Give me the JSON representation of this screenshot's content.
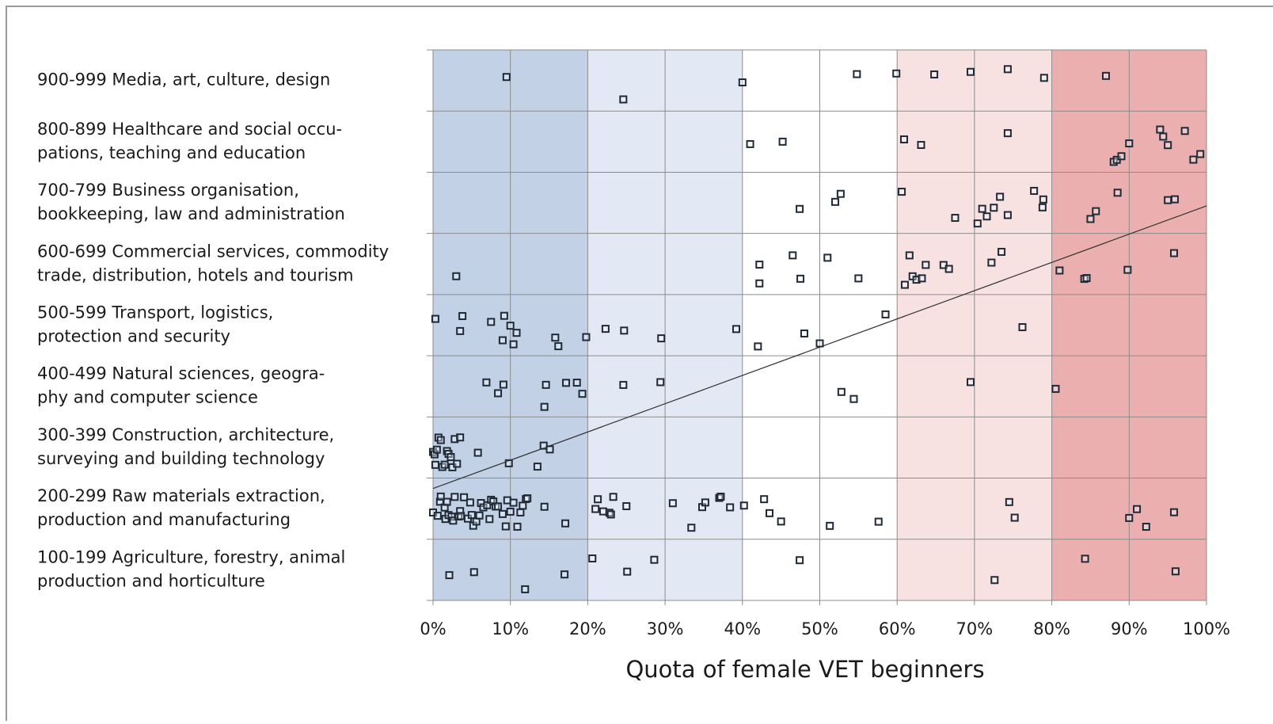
{
  "chart_data": {
    "type": "scatter",
    "xlabel": "Quota of female VET beginners",
    "categories": [
      [
        "900-999 Media, art, culture, design"
      ],
      [
        "800-899 Healthcare and social occu-",
        "pations, teaching and education"
      ],
      [
        "700-799 Business organisation,",
        "bookkeeping, law and administration"
      ],
      [
        "600-699 Commercial services, commodity",
        "trade, distribution, hotels and tourism"
      ],
      [
        "500-599 Transport, logistics,",
        "protection and security"
      ],
      [
        "400-499 Natural sciences, geogra-",
        "phy and computer science"
      ],
      [
        "300-399 Construction, architecture,",
        "surveying and building technology"
      ],
      [
        "200-299 Raw materials extraction,",
        "production and manufacturing"
      ],
      [
        "100-199 Agriculture, forestry, animal",
        "production and horticulture"
      ]
    ],
    "values": [
      [
        9.5,
        24.6,
        40,
        54.8,
        59.9,
        64.8,
        69.5,
        74.3,
        79,
        87
      ],
      [
        41,
        45.2,
        60.9,
        63.1,
        74.3,
        88,
        88.4,
        89,
        90,
        94,
        94.4,
        95,
        97.2,
        98.3,
        99.2
      ],
      [
        47.4,
        52,
        52.7,
        60.6,
        67.5,
        70.4,
        71,
        71.6,
        72.5,
        73.3,
        74.3,
        77.7,
        78.8,
        78.9,
        85,
        85.7,
        88.5,
        95,
        95.9
      ],
      [
        3,
        42.2,
        42.2,
        46.5,
        47.5,
        51,
        55,
        61,
        61.6,
        62,
        62.5,
        63.2,
        63.7,
        66,
        66.7,
        72.2,
        73.5,
        81,
        84.2,
        84.5,
        89.8,
        95.8
      ],
      [
        0.3,
        3.5,
        3.8,
        7.5,
        9,
        9.2,
        10,
        10.4,
        10.8,
        15.8,
        16.2,
        19.8,
        22.3,
        24.7,
        29.5,
        39.2,
        42,
        48,
        50,
        58.5,
        76.2
      ],
      [
        6.9,
        8.4,
        9.1,
        14.4,
        14.6,
        17.2,
        18.6,
        19.3,
        24.6,
        29.4,
        52.8,
        54.4,
        69.5,
        80.5
      ],
      [
        0,
        0.2,
        0.3,
        0.5,
        0.7,
        1,
        1.2,
        1.5,
        1.8,
        2,
        2.3,
        2.5,
        2.8,
        3.1,
        3.5,
        5.8,
        9.8,
        13.5,
        14.3,
        15.1
      ],
      [
        0,
        0.6,
        0.9,
        1,
        1.5,
        1.6,
        1.8,
        2,
        2.4,
        2.6,
        2.8,
        3.3,
        3.5,
        3.6,
        4,
        4.5,
        4.8,
        5,
        5.2,
        5.6,
        6,
        6.2,
        6.5,
        7,
        7.3,
        7.5,
        7.8,
        8.1,
        8.4,
        9,
        9.4,
        9.6,
        10,
        10.4,
        10.9,
        11.3,
        11.6,
        12,
        12.2,
        14.4,
        17.1,
        21,
        21.3,
        22,
        22.8,
        23,
        23.3,
        25,
        31,
        33.4,
        34.8,
        35.2,
        37,
        37.2,
        38.4,
        40.2,
        42.8,
        43.5,
        45,
        51.3,
        57.6,
        74.5,
        75.2,
        90,
        91,
        92.2,
        95.8
      ],
      [
        2.1,
        5.3,
        11.9,
        17,
        20.6,
        25.1,
        28.6,
        47.4,
        72.6,
        84.3,
        96
      ]
    ],
    "xlim": [
      0,
      100
    ],
    "xticks": [
      {
        "value": 0,
        "label": "0%"
      },
      {
        "value": 10,
        "label": "10%"
      },
      {
        "value": 20,
        "label": "20%"
      },
      {
        "value": 30,
        "label": "30%"
      },
      {
        "value": 40,
        "label": "40%"
      },
      {
        "value": 50,
        "label": "50%"
      },
      {
        "value": 60,
        "label": "60%"
      },
      {
        "value": 70,
        "label": "70%"
      },
      {
        "value": 80,
        "label": "80%"
      },
      {
        "value": 90,
        "label": "90%"
      },
      {
        "value": 100,
        "label": "100%"
      }
    ],
    "ylim": [
      0,
      9
    ],
    "grid": true,
    "bands": [
      {
        "from": 0,
        "to": 20,
        "color": "#c3d1e6"
      },
      {
        "from": 20,
        "to": 40,
        "color": "#e3e9f4"
      },
      {
        "from": 60,
        "to": 80,
        "color": "#f8e1e1"
      },
      {
        "from": 80,
        "to": 100,
        "color": "#ecafaf"
      }
    ],
    "trendline": {
      "x": [
        0,
        100
      ],
      "y": [
        1.83,
        6.45
      ]
    }
  }
}
